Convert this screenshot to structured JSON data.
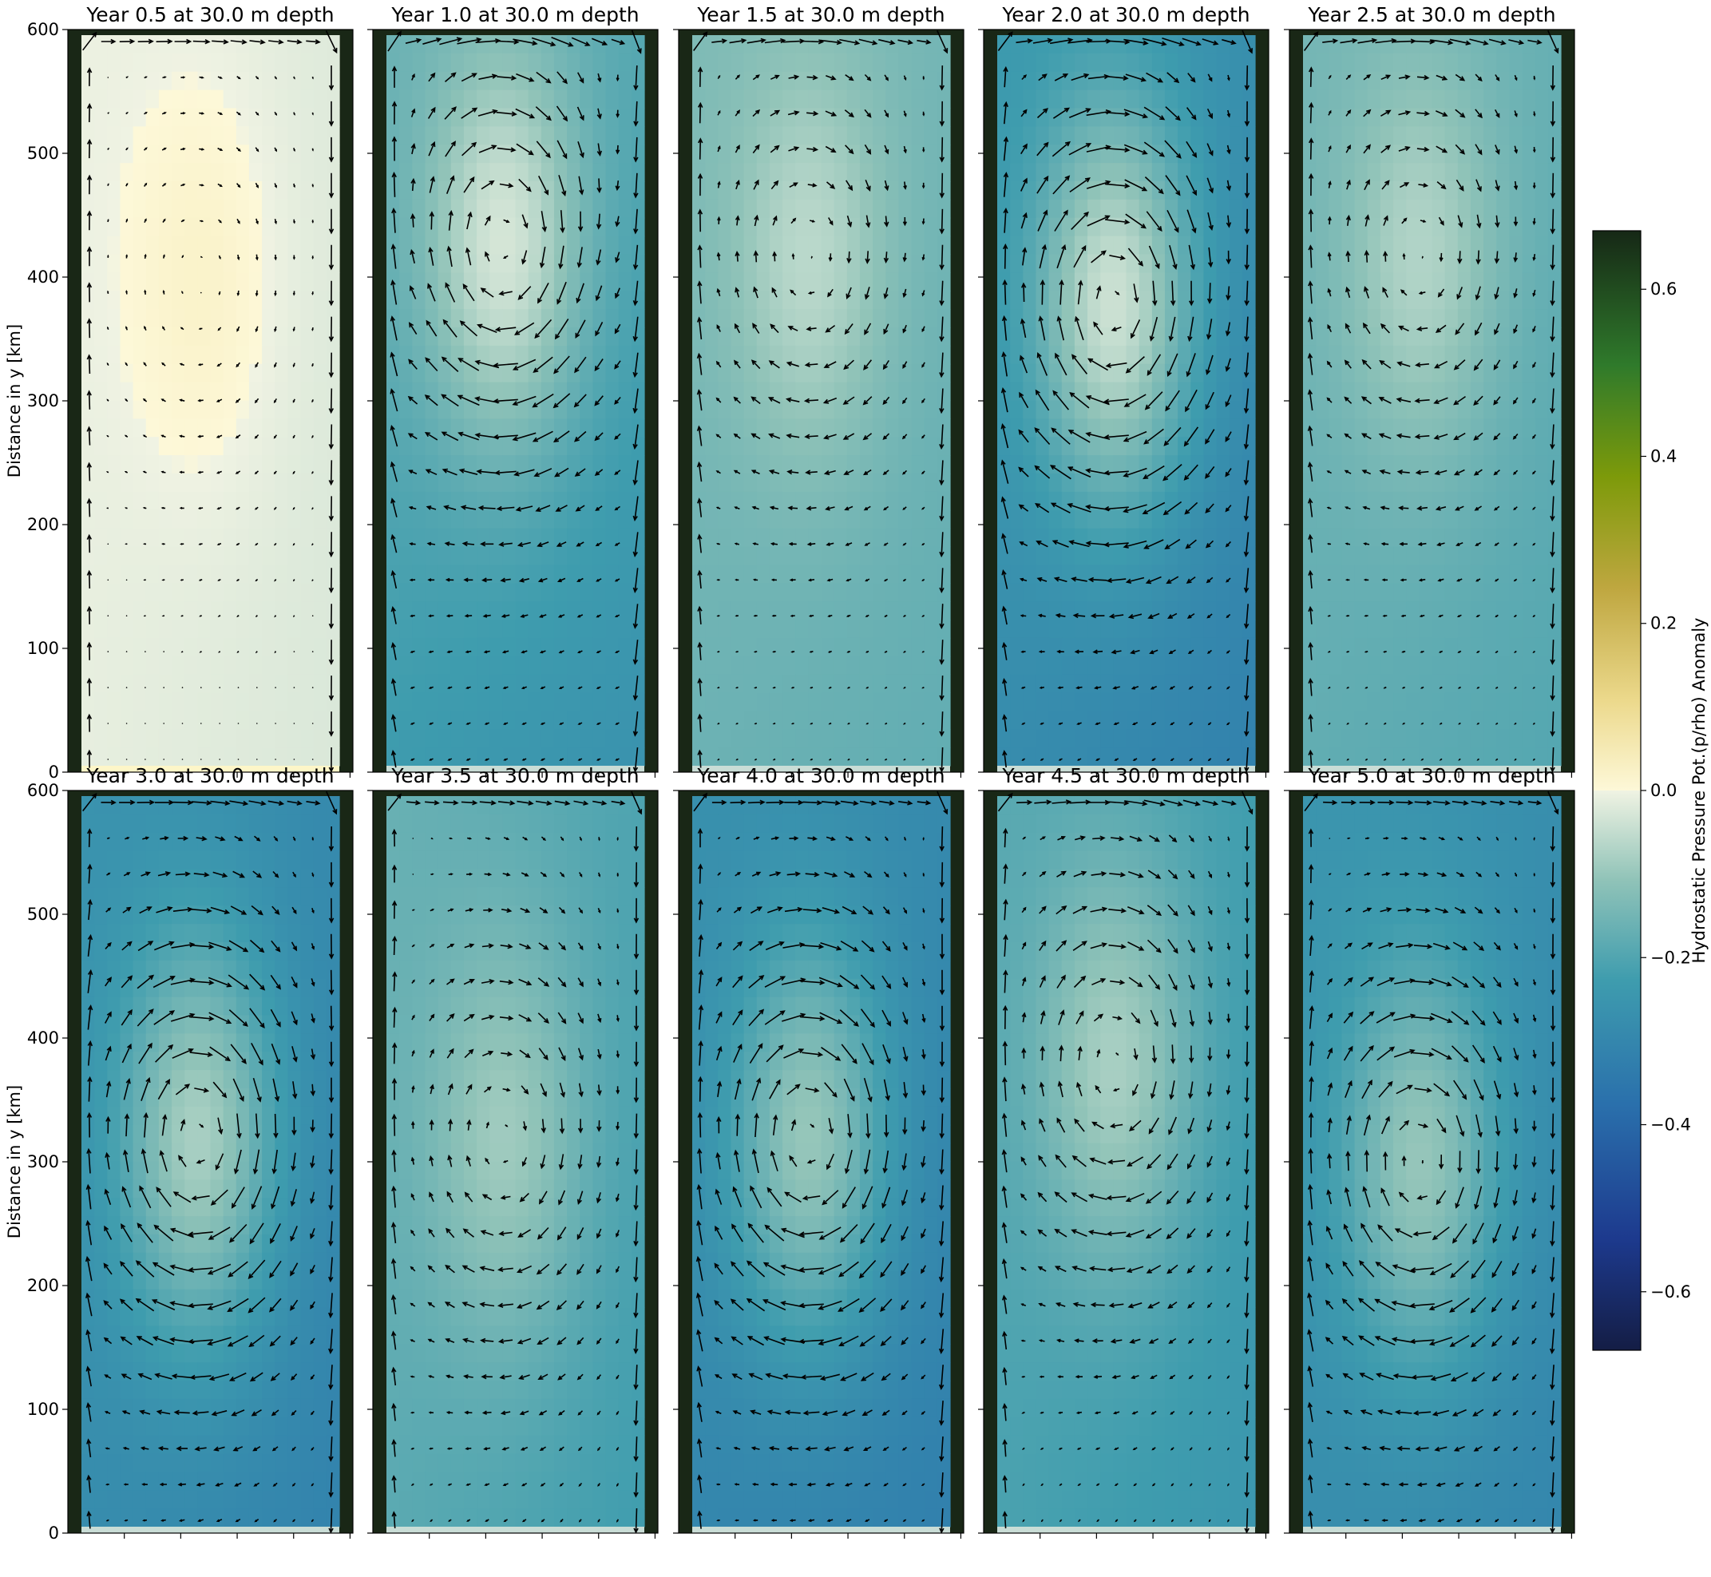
{
  "chart_data": {
    "type": "heatmap",
    "colorbar": {
      "label": "Hydrostatic Pressure Pot.(p/rho) Anomaly",
      "range": [
        -0.67,
        0.67
      ],
      "ticks": [
        -0.6,
        -0.4,
        -0.2,
        0.0,
        0.2,
        0.4,
        0.6
      ],
      "tick_labels": [
        "−0.6",
        "−0.4",
        "−0.2",
        "0.0",
        "0.2",
        "0.4",
        "0.6"
      ]
    },
    "y_axis": {
      "label": "Distance in y [km]",
      "range": [
        0,
        600
      ],
      "ticks": [
        0,
        100,
        200,
        300,
        400,
        500,
        600
      ],
      "tick_labels": [
        "0",
        "100",
        "200",
        "300",
        "400",
        "500",
        "600"
      ]
    },
    "panels": [
      {
        "title": "Year 0.5 at 30.0 m depth",
        "year": 0.5,
        "center_value": 0.02,
        "west_value": 0.0,
        "east_value": -0.03,
        "south_value": -0.02,
        "north_value": -0.01,
        "high_y_km": 400
      },
      {
        "title": "Year 1.0 at 30.0 m depth",
        "year": 1.0,
        "center_value": -0.03,
        "west_value": -0.18,
        "east_value": -0.24,
        "south_value": -0.28,
        "north_value": -0.15,
        "high_y_km": 430
      },
      {
        "title": "Year 1.5 at 30.0 m depth",
        "year": 1.5,
        "center_value": -0.06,
        "west_value": -0.14,
        "east_value": -0.17,
        "south_value": -0.18,
        "north_value": -0.13,
        "high_y_km": 420
      },
      {
        "title": "Year 2.0 at 30.0 m depth",
        "year": 2.0,
        "center_value": -0.04,
        "west_value": -0.26,
        "east_value": -0.33,
        "south_value": -0.3,
        "north_value": -0.22,
        "high_y_km": 380
      },
      {
        "title": "Year 2.5 at 30.0 m depth",
        "year": 2.5,
        "center_value": -0.07,
        "west_value": -0.16,
        "east_value": -0.2,
        "south_value": -0.19,
        "north_value": -0.14,
        "high_y_km": 420
      },
      {
        "title": "Year 3.0 at 30.0 m depth",
        "year": 3.0,
        "center_value": -0.08,
        "west_value": -0.27,
        "east_value": -0.33,
        "south_value": -0.29,
        "north_value": -0.25,
        "high_y_km": 320
      },
      {
        "title": "Year 3.5 at 30.0 m depth",
        "year": 3.5,
        "center_value": -0.09,
        "west_value": -0.17,
        "east_value": -0.25,
        "south_value": -0.2,
        "north_value": -0.16,
        "high_y_km": 320
      },
      {
        "title": "Year 4.0 at 30.0 m depth",
        "year": 4.0,
        "center_value": -0.1,
        "west_value": -0.28,
        "east_value": -0.32,
        "south_value": -0.32,
        "north_value": -0.26,
        "high_y_km": 320
      },
      {
        "title": "Year 4.5 at 30.0 m depth",
        "year": 4.5,
        "center_value": -0.08,
        "west_value": -0.2,
        "east_value": -0.27,
        "south_value": -0.22,
        "north_value": -0.18,
        "high_y_km": 380
      },
      {
        "title": "Year 5.0 at 30.0 m depth",
        "year": 5.0,
        "center_value": -0.1,
        "west_value": -0.26,
        "east_value": -0.31,
        "south_value": -0.29,
        "north_value": -0.24,
        "high_y_km": 300
      }
    ]
  }
}
